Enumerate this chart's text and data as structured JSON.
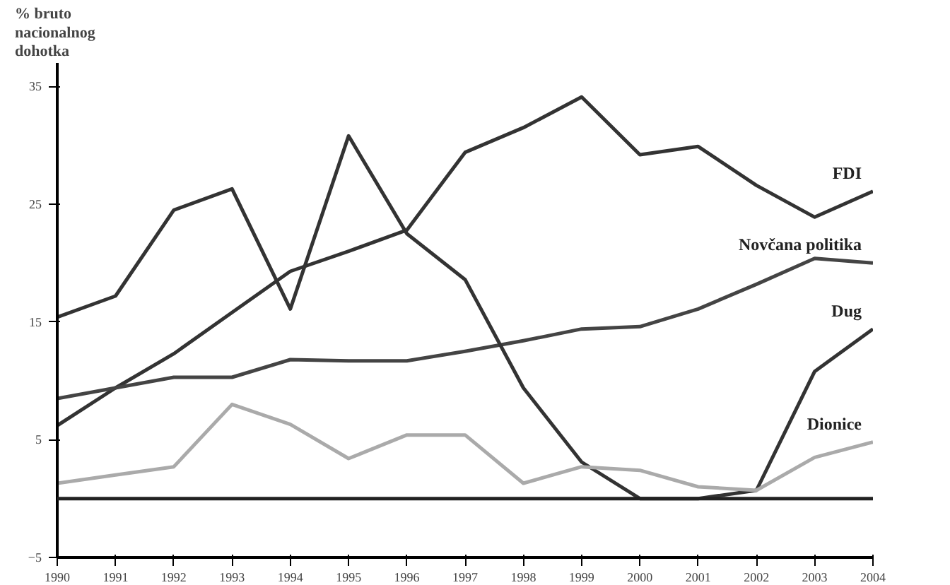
{
  "chart_data": {
    "type": "line",
    "ylabel": "% bruto nacionalnog dohotka",
    "x": [
      1990,
      1991,
      1992,
      1993,
      1994,
      1995,
      1996,
      1997,
      1998,
      1999,
      2000,
      2001,
      2002,
      2003,
      2004
    ],
    "series": [
      {
        "name": "FDI",
        "color": "#333333",
        "values": [
          6.2,
          9.4,
          12.3,
          15.8,
          19.3,
          21.0,
          22.8,
          29.4,
          31.5,
          34.1,
          29.2,
          29.9,
          26.6,
          23.9,
          26.1
        ]
      },
      {
        "name": "Novčana politika",
        "color": "#444444",
        "values": [
          8.5,
          9.4,
          10.3,
          10.3,
          11.8,
          11.7,
          11.7,
          12.5,
          13.4,
          14.4,
          14.6,
          16.1,
          18.2,
          20.4,
          20.0
        ]
      },
      {
        "name": "Dug",
        "color": "#333333",
        "values": [
          15.4,
          17.2,
          24.5,
          26.3,
          16.1,
          30.8,
          22.5,
          18.6,
          9.4,
          3.1,
          0,
          0,
          0.7,
          10.8,
          14.4
        ]
      },
      {
        "name": "Dionice",
        "color": "#aaaaaa",
        "values": [
          1.3,
          2.0,
          2.7,
          8.0,
          6.3,
          3.4,
          5.4,
          5.4,
          1.3,
          2.7,
          2.4,
          1.0,
          0.7,
          3.5,
          4.8
        ]
      }
    ],
    "xlim": [
      1990,
      2004
    ],
    "xticks": [
      1990,
      1991,
      1992,
      1993,
      1994,
      1995,
      1996,
      1997,
      1998,
      1999,
      2000,
      2001,
      2002,
      2003,
      2004
    ],
    "ylim": [
      -5,
      37
    ],
    "yticks": [
      -5,
      5,
      15,
      25,
      35
    ],
    "ref_lines": [
      {
        "axis": "y",
        "value": 0,
        "color": "#222222"
      }
    ],
    "grid": false,
    "line_style": "solid",
    "marker": "none"
  }
}
